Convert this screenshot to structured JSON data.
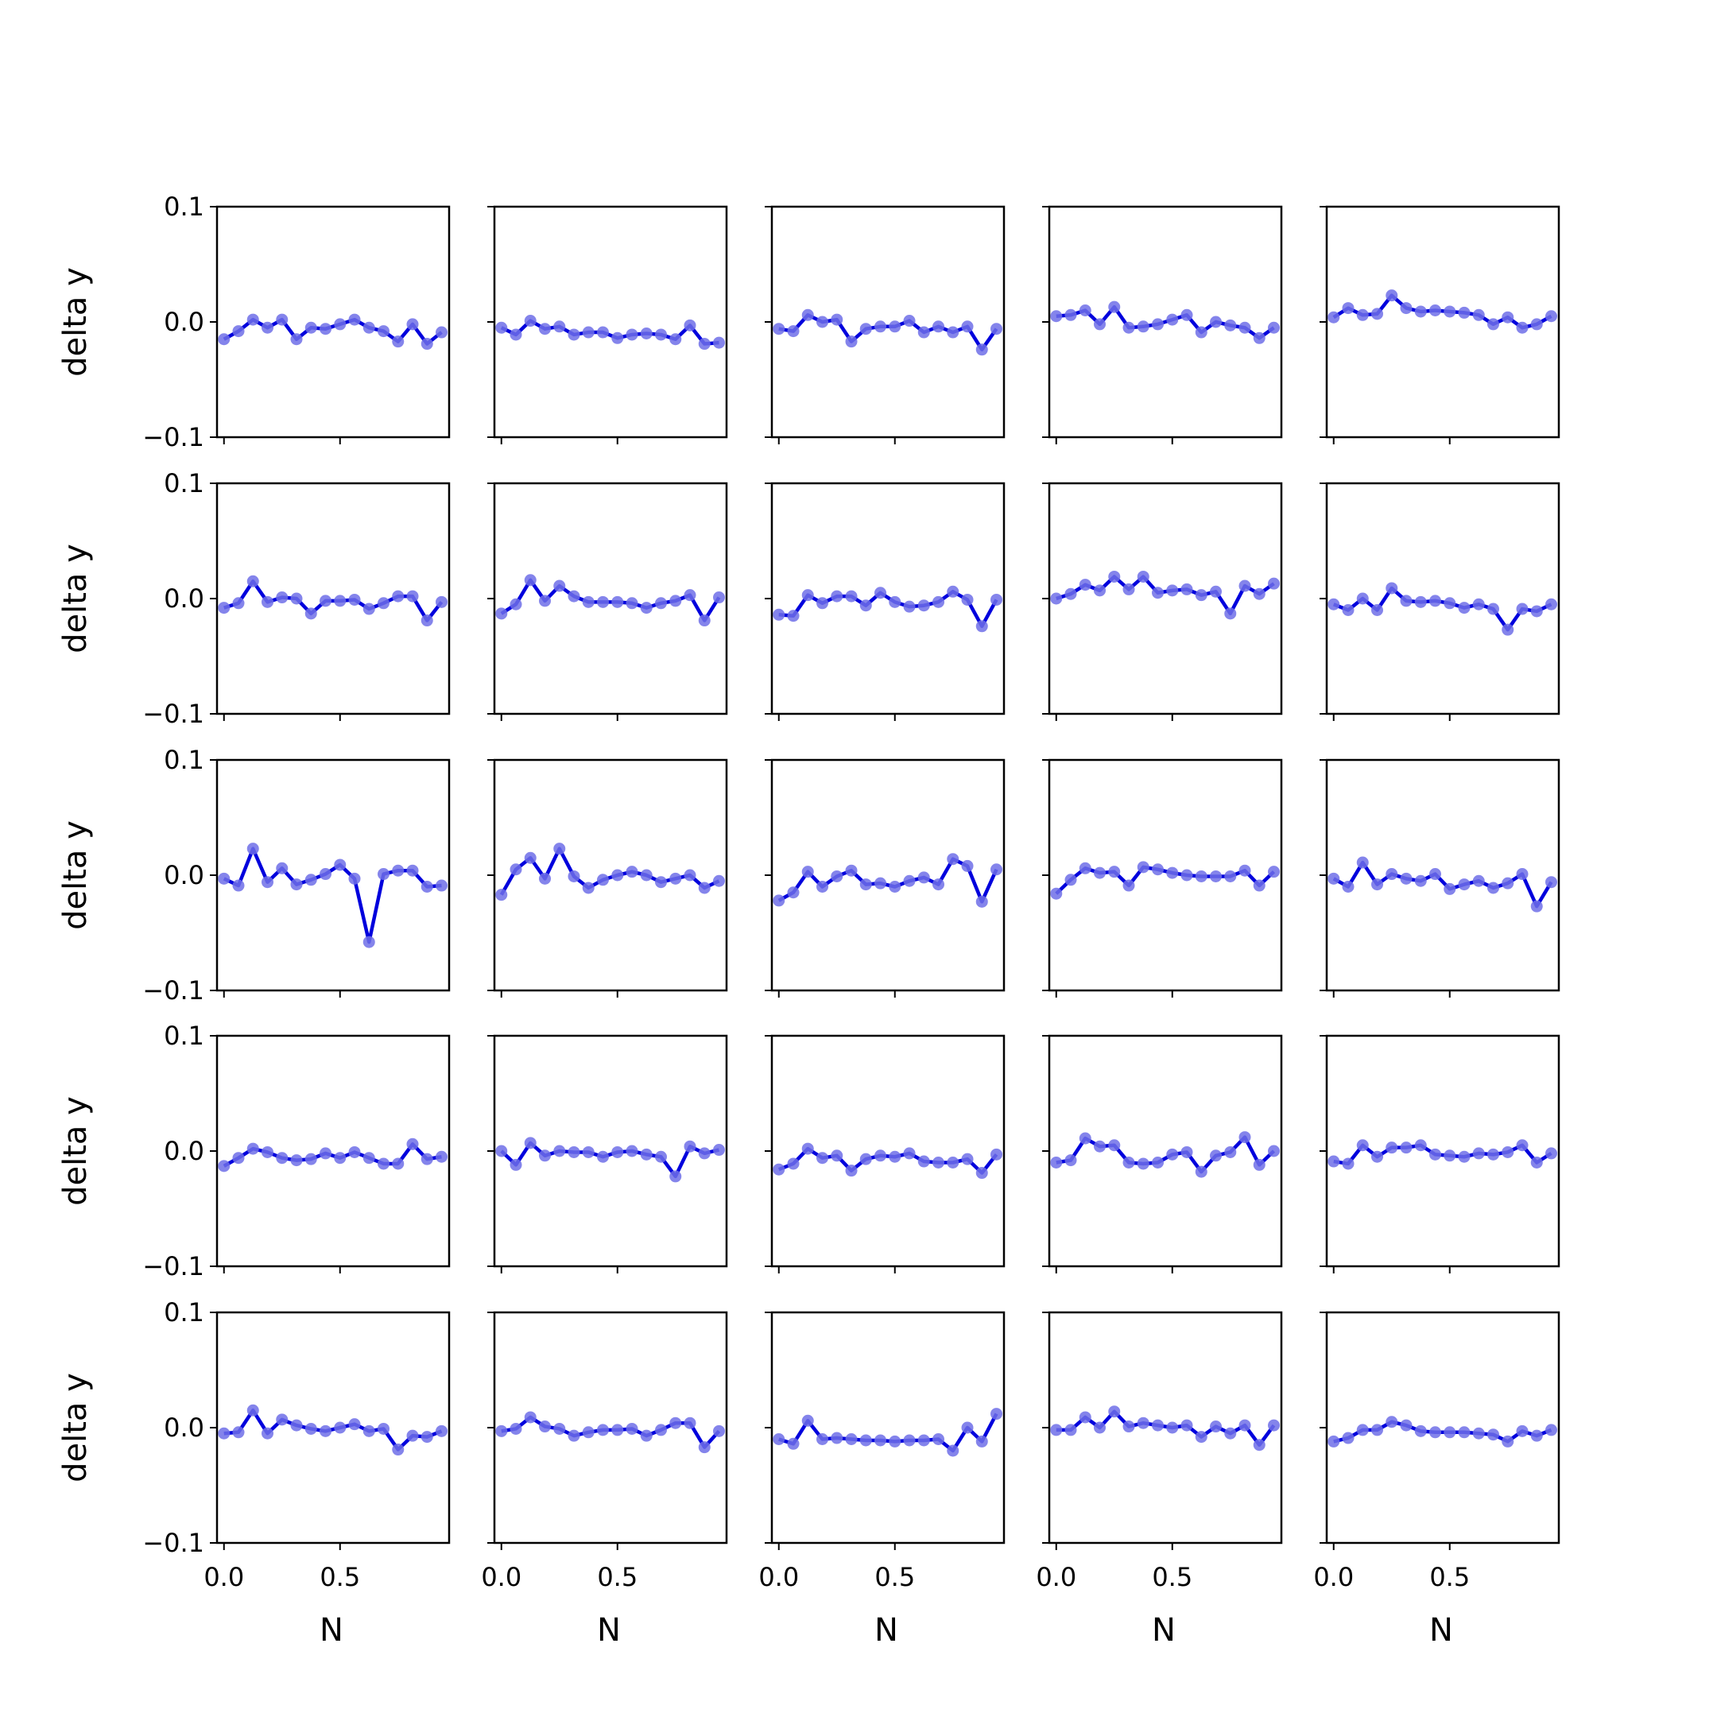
{
  "chart_data": {
    "type": "line",
    "layout": "grid 5x5",
    "x": [
      0.0,
      0.0625,
      0.125,
      0.1875,
      0.25,
      0.3125,
      0.375,
      0.4375,
      0.5,
      0.5625,
      0.625,
      0.6875,
      0.75,
      0.8125,
      0.875,
      0.9375
    ],
    "xlim": [
      -0.03,
      0.97
    ],
    "ylim": [
      -0.1,
      0.1
    ],
    "xticks": [
      0.0,
      0.5
    ],
    "xtick_labels": [
      "0.0",
      "0.5"
    ],
    "yticks": [
      0.1,
      0.0,
      -0.1
    ],
    "ytick_labels": [
      "0.1",
      "0.0",
      "−0.1"
    ],
    "xlabel": "N",
    "ylabel": "delta y",
    "line_color": "#0000dd",
    "marker_color": "#6f6fe8",
    "grid": false,
    "panels": [
      {
        "values": [
          -0.015,
          -0.008,
          0.002,
          -0.005,
          0.002,
          -0.015,
          -0.005,
          -0.006,
          -0.002,
          0.002,
          -0.005,
          -0.008,
          -0.017,
          -0.002,
          -0.019,
          -0.009
        ]
      },
      {
        "values": [
          -0.005,
          -0.011,
          0.001,
          -0.006,
          -0.004,
          -0.011,
          -0.009,
          -0.009,
          -0.014,
          -0.011,
          -0.01,
          -0.011,
          -0.015,
          -0.003,
          -0.019,
          -0.018
        ]
      },
      {
        "values": [
          -0.006,
          -0.008,
          0.006,
          0.0,
          0.002,
          -0.017,
          -0.006,
          -0.004,
          -0.004,
          0.001,
          -0.009,
          -0.004,
          -0.009,
          -0.004,
          -0.024,
          -0.006
        ]
      },
      {
        "values": [
          0.005,
          0.006,
          0.01,
          -0.002,
          0.013,
          -0.005,
          -0.004,
          -0.002,
          0.002,
          0.006,
          -0.009,
          0.0,
          -0.003,
          -0.005,
          -0.014,
          -0.005
        ]
      },
      {
        "values": [
          0.004,
          0.012,
          0.006,
          0.007,
          0.023,
          0.012,
          0.009,
          0.01,
          0.009,
          0.008,
          0.006,
          -0.002,
          0.004,
          -0.005,
          -0.002,
          0.005
        ]
      },
      {
        "values": [
          -0.008,
          -0.004,
          0.015,
          -0.003,
          0.001,
          0.0,
          -0.013,
          -0.002,
          -0.002,
          -0.001,
          -0.009,
          -0.004,
          0.002,
          0.002,
          -0.019,
          -0.003
        ]
      },
      {
        "values": [
          -0.013,
          -0.005,
          0.016,
          -0.002,
          0.011,
          0.002,
          -0.003,
          -0.003,
          -0.003,
          -0.004,
          -0.008,
          -0.004,
          -0.002,
          0.003,
          -0.019,
          0.001
        ]
      },
      {
        "values": [
          -0.014,
          -0.015,
          0.003,
          -0.004,
          0.002,
          0.002,
          -0.006,
          0.005,
          -0.003,
          -0.007,
          -0.006,
          -0.003,
          0.006,
          -0.001,
          -0.024,
          -0.001
        ]
      },
      {
        "values": [
          0.0,
          0.004,
          0.012,
          0.007,
          0.019,
          0.008,
          0.019,
          0.005,
          0.007,
          0.008,
          0.003,
          0.006,
          -0.013,
          0.011,
          0.004,
          0.013
        ]
      },
      {
        "values": [
          -0.005,
          -0.01,
          0.0,
          -0.01,
          0.009,
          -0.002,
          -0.003,
          -0.002,
          -0.004,
          -0.008,
          -0.005,
          -0.009,
          -0.027,
          -0.009,
          -0.011,
          -0.005
        ]
      },
      {
        "values": [
          -0.003,
          -0.009,
          0.023,
          -0.006,
          0.006,
          -0.008,
          -0.004,
          0.001,
          0.009,
          -0.003,
          -0.058,
          0.001,
          0.004,
          0.004,
          -0.01,
          -0.009
        ]
      },
      {
        "values": [
          -0.017,
          0.005,
          0.015,
          -0.003,
          0.023,
          -0.001,
          -0.011,
          -0.004,
          0.0,
          0.003,
          0.0,
          -0.006,
          -0.003,
          0.0,
          -0.011,
          -0.005
        ]
      },
      {
        "values": [
          -0.022,
          -0.015,
          0.003,
          -0.01,
          -0.001,
          0.004,
          -0.008,
          -0.007,
          -0.01,
          -0.005,
          -0.002,
          -0.008,
          0.014,
          0.008,
          -0.023,
          0.005
        ]
      },
      {
        "values": [
          -0.016,
          -0.004,
          0.006,
          0.002,
          0.003,
          -0.009,
          0.007,
          0.005,
          0.002,
          0.0,
          -0.001,
          -0.001,
          -0.001,
          0.004,
          -0.009,
          0.003
        ]
      },
      {
        "values": [
          -0.003,
          -0.01,
          0.011,
          -0.008,
          0.001,
          -0.003,
          -0.005,
          0.001,
          -0.012,
          -0.008,
          -0.005,
          -0.011,
          -0.007,
          0.001,
          -0.027,
          -0.006
        ]
      },
      {
        "values": [
          -0.013,
          -0.006,
          0.002,
          -0.001,
          -0.006,
          -0.008,
          -0.007,
          -0.002,
          -0.006,
          -0.001,
          -0.006,
          -0.011,
          -0.011,
          0.006,
          -0.007,
          -0.005
        ]
      },
      {
        "values": [
          0.0,
          -0.012,
          0.007,
          -0.004,
          0.0,
          -0.001,
          -0.001,
          -0.005,
          -0.001,
          0.0,
          -0.003,
          -0.005,
          -0.022,
          0.004,
          -0.002,
          0.001
        ]
      },
      {
        "values": [
          -0.016,
          -0.011,
          0.002,
          -0.006,
          -0.004,
          -0.017,
          -0.007,
          -0.004,
          -0.005,
          -0.002,
          -0.009,
          -0.01,
          -0.01,
          -0.007,
          -0.019,
          -0.003
        ]
      },
      {
        "values": [
          -0.01,
          -0.008,
          0.011,
          0.004,
          0.005,
          -0.01,
          -0.011,
          -0.01,
          -0.003,
          -0.001,
          -0.018,
          -0.004,
          -0.001,
          0.012,
          -0.012,
          0.0
        ]
      },
      {
        "values": [
          -0.009,
          -0.011,
          0.005,
          -0.005,
          0.003,
          0.003,
          0.005,
          -0.003,
          -0.004,
          -0.005,
          -0.002,
          -0.003,
          -0.001,
          0.005,
          -0.01,
          -0.002
        ]
      },
      {
        "values": [
          -0.005,
          -0.004,
          0.015,
          -0.005,
          0.007,
          0.002,
          -0.001,
          -0.003,
          0.0,
          0.003,
          -0.003,
          -0.001,
          -0.019,
          -0.007,
          -0.008,
          -0.003
        ]
      },
      {
        "values": [
          -0.003,
          -0.001,
          0.009,
          0.001,
          -0.001,
          -0.007,
          -0.004,
          -0.002,
          -0.002,
          -0.001,
          -0.007,
          -0.002,
          0.004,
          0.004,
          -0.017,
          -0.003
        ]
      },
      {
        "values": [
          -0.01,
          -0.014,
          0.006,
          -0.01,
          -0.009,
          -0.01,
          -0.011,
          -0.011,
          -0.012,
          -0.011,
          -0.011,
          -0.01,
          -0.02,
          0.0,
          -0.012,
          0.012
        ]
      },
      {
        "values": [
          -0.002,
          -0.002,
          0.009,
          0.0,
          0.014,
          0.001,
          0.004,
          0.002,
          0.0,
          0.002,
          -0.008,
          0.001,
          -0.005,
          0.002,
          -0.015,
          0.002
        ]
      },
      {
        "values": [
          -0.012,
          -0.009,
          -0.002,
          -0.002,
          0.005,
          0.002,
          -0.003,
          -0.004,
          -0.004,
          -0.004,
          -0.005,
          -0.006,
          -0.012,
          -0.003,
          -0.007,
          -0.002
        ]
      }
    ]
  }
}
